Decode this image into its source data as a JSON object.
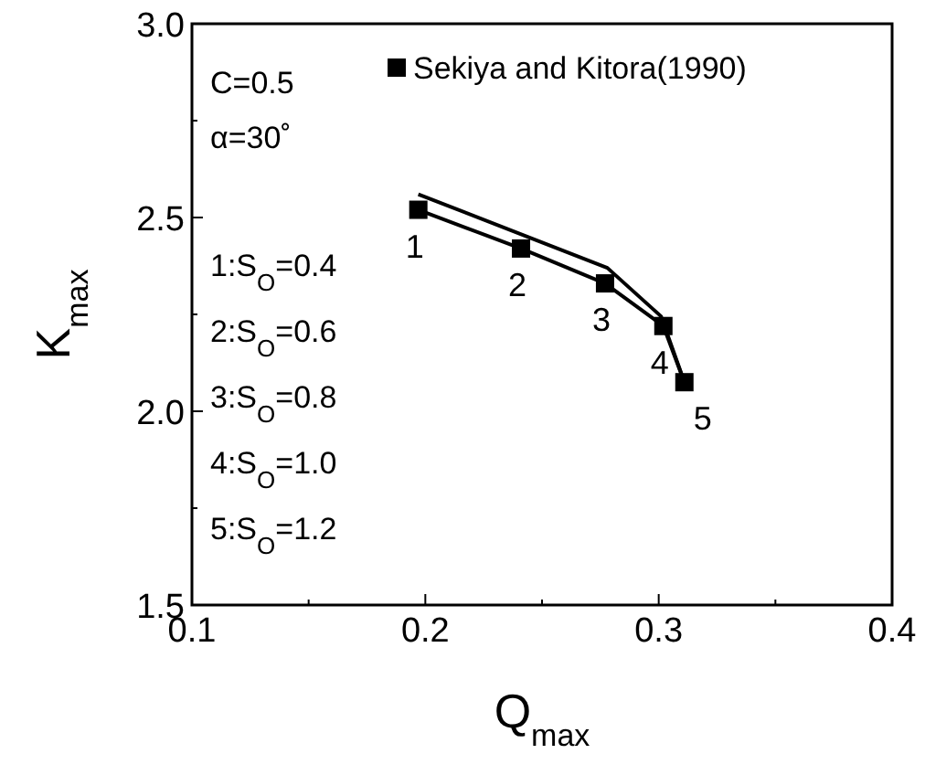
{
  "chart_data": {
    "type": "line",
    "xlabel": "Q$_{max}$",
    "ylabel": "K$_{max}$",
    "xlim": [
      0.1,
      0.4
    ],
    "ylim": [
      1.5,
      3.0
    ],
    "xticks": [
      {
        "value": 0.1,
        "label": "0.1"
      },
      {
        "value": 0.15,
        "label": null
      },
      {
        "value": 0.2,
        "label": "0.2"
      },
      {
        "value": 0.25,
        "label": null
      },
      {
        "value": 0.3,
        "label": "0.3"
      },
      {
        "value": 0.35,
        "label": null
      },
      {
        "value": 0.4,
        "label": "0.4"
      }
    ],
    "yticks": [
      {
        "value": 1.5,
        "label": "1.5"
      },
      {
        "value": 1.75,
        "label": null
      },
      {
        "value": 2,
        "label": "2.0"
      },
      {
        "value": 2.25,
        "label": null
      },
      {
        "value": 2.5,
        "label": "2.5"
      },
      {
        "value": 2.75,
        "label": null
      },
      {
        "value": 3,
        "label": "3.0"
      }
    ],
    "grid": false,
    "legend": "top right",
    "series": [
      {
        "color": "#000000",
        "marker": "none",
        "x": [
          0.197,
          0.278,
          0.301,
          0.311
        ],
        "values": [
          2.56,
          2.37,
          2.245,
          2.075
        ]
      },
      {
        "color": "#000000",
        "marker": "none",
        "x": [
          0.197,
          0.241,
          0.277,
          0.302,
          0.311
        ],
        "values": [
          2.52,
          2.42,
          2.33,
          2.22,
          2.075
        ]
      },
      {
        "type": "scatter",
        "name": "Sekiya and Kitora(1990)",
        "color": "#000000",
        "marker": "square",
        "x": [
          0.197,
          0.241,
          0.277,
          0.302,
          0.311
        ],
        "values": [
          2.52,
          2.42,
          2.33,
          2.22,
          2.075
        ]
      }
    ],
    "annotations": [
      "C=0.5",
      "α=30˚",
      "1:S$_{O}$=0.4",
      "2:S$_{O}$=0.6",
      "3:S$_{O}$=0.8",
      "4:S$_{O}$=1.0",
      "5:S$_{O}$=1.2",
      {
        "text": "1",
        "x": 0.197,
        "y": 2.52
      },
      {
        "text": "2",
        "x": 0.241,
        "y": 2.42
      },
      {
        "text": "3",
        "x": 0.277,
        "y": 2.33
      },
      {
        "text": "4",
        "x": 0.302,
        "y": 2.22
      },
      {
        "text": "5",
        "x": 0.311,
        "y": 2.075
      }
    ]
  }
}
